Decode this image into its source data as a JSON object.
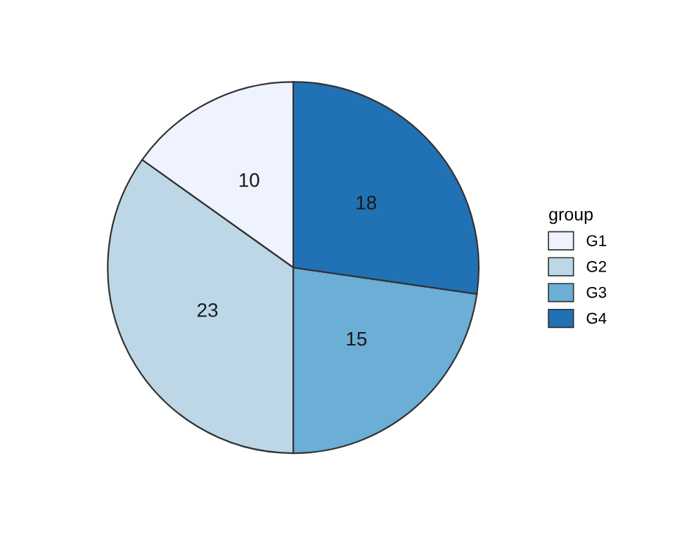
{
  "chart_data": {
    "type": "pie",
    "legend_title": "group",
    "categories": [
      "G1",
      "G2",
      "G3",
      "G4"
    ],
    "values": [
      10,
      23,
      15,
      18
    ],
    "colors": [
      "#eff3ff",
      "#bdd7e7",
      "#6baed6",
      "#2171b5"
    ],
    "data_labels": true,
    "legend": "right"
  }
}
